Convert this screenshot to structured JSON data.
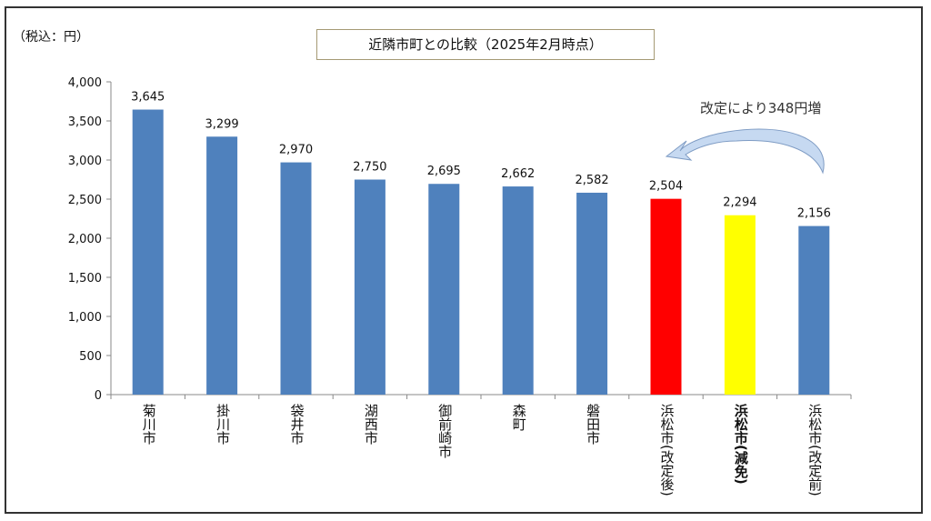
{
  "unit_label": "（税込：円）",
  "title": "近隣市町との比較（2025年2月時点）",
  "annotation": "改定により348円増",
  "chart_data": {
    "type": "bar",
    "title": "近隣市町との比較（2025年2月時点）",
    "ylabel": "（税込：円）",
    "ylim": [
      0,
      4000
    ],
    "yticks": [
      "0",
      "500",
      "1,000",
      "1,500",
      "2,000",
      "2,500",
      "3,000",
      "3,500",
      "4,000"
    ],
    "grid": false,
    "categories": [
      "菊川市",
      "掛川市",
      "袋井市",
      "湖西市",
      "御前崎市",
      "森町",
      "磐田市",
      "浜松市(改定後)",
      "浜松市(減免)",
      "浜松市(改定前)"
    ],
    "values": [
      3645,
      3299,
      2970,
      2750,
      2695,
      2662,
      2582,
      2504,
      2294,
      2156
    ],
    "data_labels": [
      "3,645",
      "3,299",
      "2,970",
      "2,750",
      "2,695",
      "2,662",
      "2,582",
      "2,504",
      "2,294",
      "2,156"
    ],
    "colors": [
      "#4f81bd",
      "#4f81bd",
      "#4f81bd",
      "#4f81bd",
      "#4f81bd",
      "#4f81bd",
      "#4f81bd",
      "#ff0000",
      "#ffff00",
      "#4f81bd"
    ],
    "bold_categories": [
      8
    ],
    "annotation": {
      "text": "改定により348円増",
      "arrow_from": "浜松市(改定前)",
      "arrow_to": "浜松市(改定後)",
      "arrow_color": "#c6d9f1"
    }
  }
}
